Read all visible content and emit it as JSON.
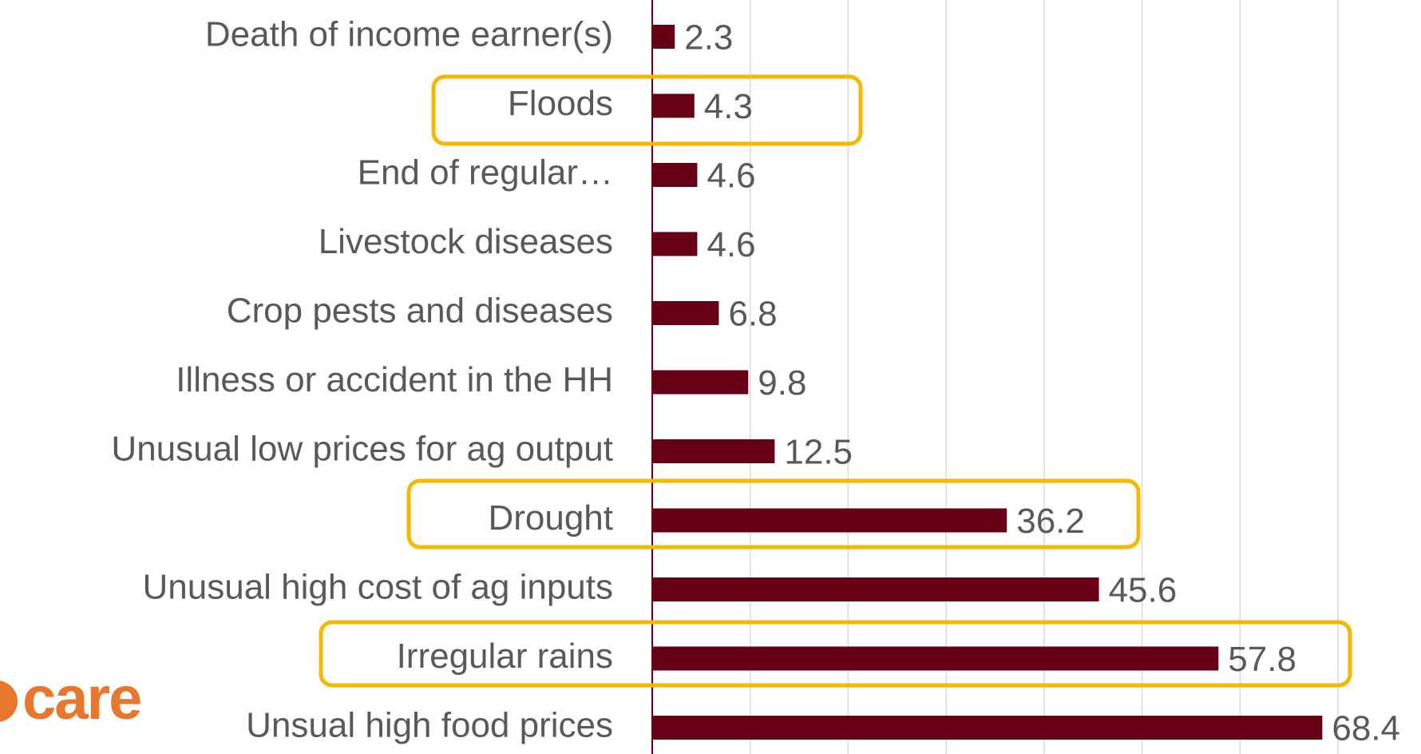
{
  "chart_data": {
    "type": "bar",
    "orientation": "horizontal",
    "categories": [
      "Death of income earner(s)",
      "Floods",
      "End of regular…",
      "Livestock diseases",
      "Crop pests and diseases",
      "Illness or accident in the HH",
      "Unusual low prices for ag output",
      "Drought",
      "Unusual high cost of ag inputs",
      "Irregular rains",
      "Unsual high food prices"
    ],
    "values": [
      2.3,
      4.3,
      4.6,
      4.6,
      6.8,
      9.8,
      12.5,
      36.2,
      45.6,
      57.8,
      68.4
    ],
    "color": "#660015",
    "xlim": [
      0,
      70
    ],
    "xticks": [
      0,
      10,
      20,
      30,
      40,
      50,
      60,
      70
    ],
    "grid": true
  },
  "logo_text": "care"
}
